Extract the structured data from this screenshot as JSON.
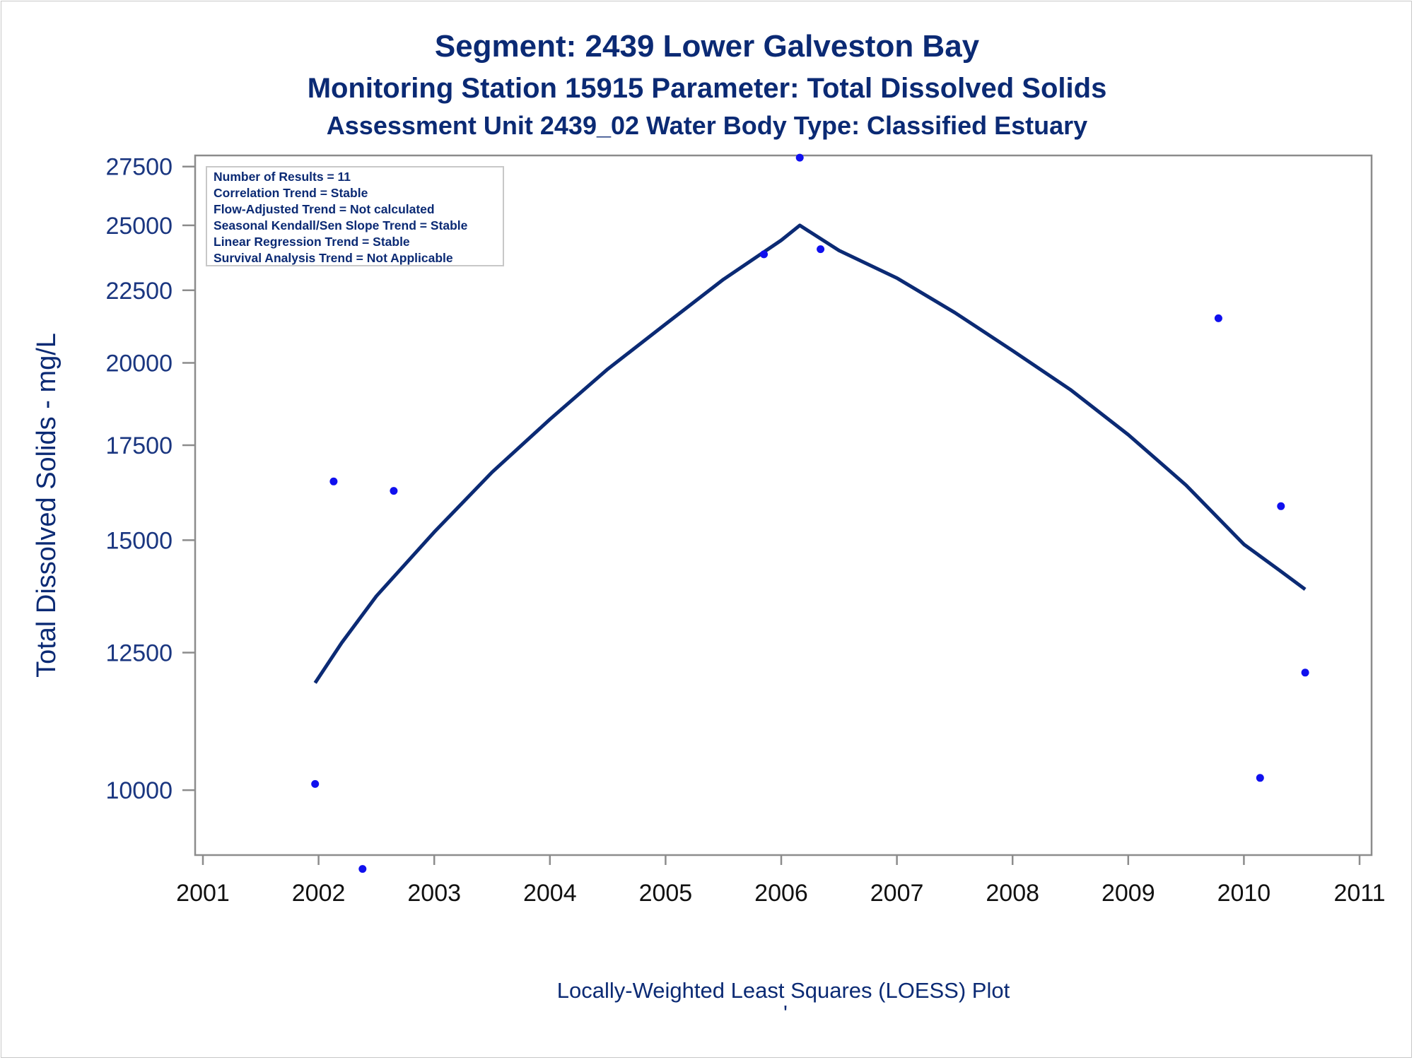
{
  "titles": {
    "line1": "Segment: 2439  Lower Galveston Bay",
    "line2": "Monitoring Station 15915 Parameter: Total Dissolved Solids",
    "line3": "Assessment Unit 2439_02   Water Body Type: Classified Estuary"
  },
  "stats_box": [
    "Number of Results = 11",
    "Correlation Trend = Stable",
    "Flow-Adjusted Trend = Not calculated",
    "Seasonal Kendall/Sen Slope Trend = Stable",
    "Linear Regression Trend = Stable",
    "Survival Analysis Trend = Not Applicable"
  ],
  "footer_mark": "'",
  "colors": {
    "title": "#0b2a74",
    "axis": "#8c8c8c",
    "points": "#1010ee",
    "loess_line": "#0b2a74"
  },
  "chart_data": {
    "type": "scatter",
    "title": "Segment: 2439  Lower Galveston Bay",
    "ylabel": "Total Dissolved Solids - mg/L",
    "xlabel": "Locally-Weighted Least Squares (LOESS) Plot",
    "xlim": [
      2001,
      2011
    ],
    "ylim": [
      9000,
      28000
    ],
    "y_scale": "log",
    "xticks": [
      2001,
      2002,
      2003,
      2004,
      2005,
      2006,
      2007,
      2008,
      2009,
      2010,
      2011
    ],
    "yticks": [
      10000,
      12500,
      15000,
      17500,
      20000,
      22500,
      25000,
      27500
    ],
    "grid": false,
    "series": [
      {
        "kind": "points",
        "x": [
          2001.97,
          2002.13,
          2002.38,
          2002.65,
          2005.85,
          2006.16,
          2006.34,
          2009.78,
          2010.14,
          2010.32,
          2010.53
        ],
        "y": [
          10100,
          16500,
          8800,
          16250,
          23850,
          27900,
          24050,
          21500,
          10200,
          15850,
          12100
        ]
      },
      {
        "kind": "loess",
        "x": [
          2001.97,
          2002.2,
          2002.5,
          2003.0,
          2003.5,
          2004.0,
          2004.5,
          2005.0,
          2005.5,
          2006.0,
          2006.16,
          2006.5,
          2007.0,
          2007.5,
          2008.0,
          2008.5,
          2009.0,
          2009.5,
          2010.0,
          2010.3,
          2010.53
        ],
        "y": [
          11900,
          12700,
          13700,
          15200,
          16750,
          18250,
          19800,
          21300,
          22900,
          24400,
          25000,
          24000,
          22950,
          21700,
          20400,
          19150,
          17800,
          16400,
          14900,
          14300,
          13850
        ]
      }
    ]
  }
}
